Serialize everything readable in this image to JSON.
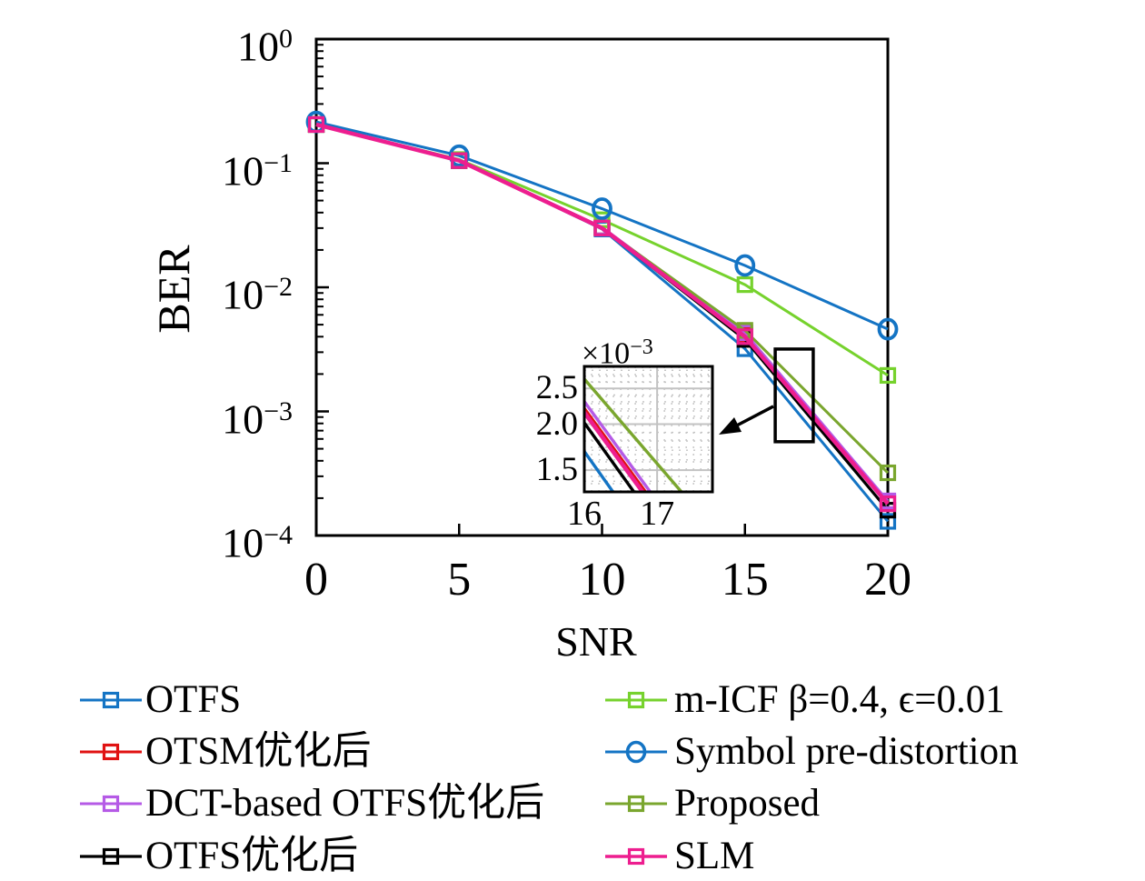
{
  "figure": {
    "background": "#ffffff"
  },
  "chart_data": {
    "type": "line",
    "title": "",
    "xlabel": "SNR",
    "ylabel": "BER",
    "x_scale": "linear",
    "y_scale": "log",
    "xlim": [
      0,
      20
    ],
    "ylim": [
      0.0001,
      1
    ],
    "x_ticks": [
      0,
      5,
      10,
      15,
      20
    ],
    "y_tick_exponents": [
      0,
      -1,
      -2,
      -3,
      -4
    ],
    "grid": false,
    "legend_position": "below-plot, two columns",
    "x": [
      0,
      5,
      10,
      15,
      20
    ],
    "series": [
      {
        "name": "OTFS",
        "color": "#1474c4",
        "marker": "square",
        "line_width": 3,
        "values": [
          0.205,
          0.105,
          0.0295,
          0.0032,
          0.00013
        ]
      },
      {
        "name": "OTSM优化后",
        "color": "#e01212",
        "marker": "square",
        "line_width": 3,
        "values": [
          0.205,
          0.105,
          0.0305,
          0.0041,
          0.000185
        ]
      },
      {
        "name": "DCT-based OTFS优化后",
        "color": "#b55ae6",
        "marker": "square",
        "line_width": 3,
        "values": [
          0.205,
          0.105,
          0.0305,
          0.0043,
          0.00019
        ]
      },
      {
        "name": "OTFS优化后",
        "color": "#000000",
        "marker": "square",
        "line_width": 3.2,
        "values": [
          0.205,
          0.105,
          0.03,
          0.0038,
          0.00016
        ]
      },
      {
        "name": "m-ICF β=0.4, ϵ=0.01",
        "color": "#76d22d",
        "marker": "square",
        "line_width": 3,
        "values": [
          0.205,
          0.107,
          0.035,
          0.0105,
          0.00195
        ]
      },
      {
        "name": "Symbol pre-distortion",
        "color": "#1474c4",
        "marker": "circle",
        "line_width": 3,
        "values": [
          0.215,
          0.115,
          0.043,
          0.015,
          0.0046
        ]
      },
      {
        "name": "Proposed",
        "color": "#7aa62e",
        "marker": "square",
        "line_width": 3,
        "values": [
          0.205,
          0.105,
          0.03,
          0.0045,
          0.00032
        ]
      },
      {
        "name": "SLM",
        "color": "#ed1e8f",
        "marker": "square",
        "line_width": 4.5,
        "values": [
          0.205,
          0.105,
          0.03,
          0.004,
          0.00018
        ]
      }
    ],
    "draw_order": [
      0,
      1,
      3,
      2,
      4,
      6,
      5,
      7
    ],
    "legend_columns": [
      [
        0,
        1,
        2,
        3
      ],
      [
        4,
        5,
        6,
        7
      ]
    ],
    "inset": {
      "scale_label_prefix": "×10",
      "scale_label_exponent": "−3",
      "x_ticks": [
        16,
        17
      ],
      "xlim": [
        16,
        17.76
      ],
      "y_ticks_milli": [
        2.5,
        2.0,
        1.5
      ],
      "ylim_milli": [
        1.31,
        2.87
      ],
      "y_minor_milli": [
        1.4,
        1.6,
        1.7,
        1.8,
        1.9,
        2.1,
        2.2,
        2.3,
        2.4,
        2.6,
        2.7,
        2.8
      ],
      "x_minor_step": 0.1,
      "grid": "solid major, dotted minor"
    },
    "zoom_rect": {
      "snr": [
        16.06,
        17.39
      ],
      "ber": [
        0.00318,
        0.00057
      ]
    }
  }
}
